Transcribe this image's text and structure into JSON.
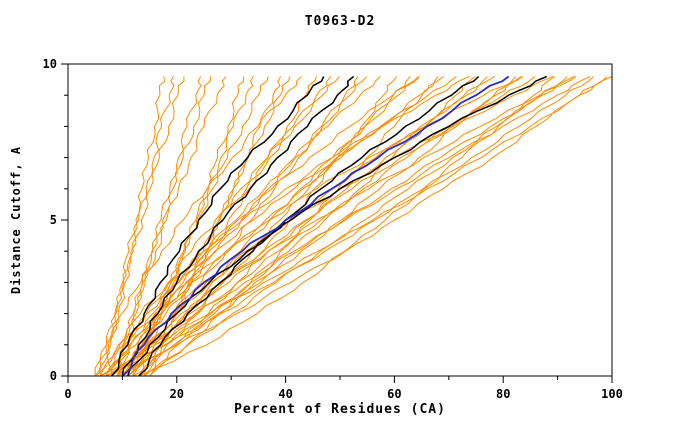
{
  "page": {
    "background": "#ffffff"
  },
  "chart_data": {
    "type": "line",
    "title": "T0963-D2",
    "xlabel": "Percent of Residues (CA)",
    "ylabel": "Distance Cutoff, A",
    "xlim": [
      0,
      100
    ],
    "ylim": [
      0,
      10
    ],
    "x_ticks": [
      0,
      20,
      40,
      60,
      80,
      100
    ],
    "x_minor_step": 10,
    "y_ticks": [
      0,
      5,
      10
    ],
    "y_minor_step": 1,
    "grid": false,
    "legend": "none",
    "frame": true,
    "jitter": 0.55,
    "colors": {
      "orange": "#ff8c00",
      "black": "#000000",
      "blue": "#2929cc"
    },
    "y_levels": [
      0,
      1,
      2,
      3,
      4,
      5,
      6,
      7,
      8,
      9,
      9.6
    ],
    "orange_series": [
      [
        5,
        7.1,
        8.6,
        10,
        11.2,
        12.5,
        13.6,
        14.8,
        15.9,
        16.9,
        17.6
      ],
      [
        6,
        7.4,
        8.8,
        10.2,
        11.6,
        13,
        14.4,
        15.8,
        17.2,
        18.6,
        19.4
      ],
      [
        7,
        7.9,
        9.2,
        10.5,
        12,
        13.5,
        15.1,
        16.8,
        18.5,
        20.2,
        21.3
      ],
      [
        8,
        10.1,
        12,
        13.7,
        15.4,
        17.1,
        18.7,
        20.3,
        21.9,
        23.5,
        24.4
      ],
      [
        9,
        10.4,
        12.1,
        13.8,
        15.6,
        17.4,
        19.3,
        21.2,
        23.1,
        25,
        26.2
      ],
      [
        10,
        11,
        12.5,
        14.2,
        16.1,
        18.1,
        20.3,
        22.6,
        25,
        27.4,
        29
      ],
      [
        11,
        14.5,
        17.1,
        19.4,
        21.6,
        23.6,
        25.6,
        27.5,
        29.4,
        31.2,
        32.3
      ],
      [
        12,
        14.3,
        16.6,
        18.9,
        21.2,
        23.5,
        25.8,
        28.1,
        30.4,
        32.7,
        34.1
      ],
      [
        13,
        14.6,
        16.6,
        18.9,
        21.3,
        23.9,
        26.6,
        29.3,
        32.1,
        35,
        36.8
      ],
      [
        14,
        17.3,
        20.1,
        22.8,
        25.4,
        27.9,
        30.4,
        32.9,
        35.3,
        37.7,
        39.1
      ],
      [
        15,
        17.1,
        19.6,
        22.2,
        24.9,
        27.6,
        30.4,
        33.2,
        36.1,
        39,
        40.8
      ],
      [
        5,
        7,
        9.9,
        13.4,
        17.2,
        21.2,
        25.6,
        30.2,
        34.9,
        39.9,
        42.9
      ],
      [
        6,
        12.5,
        17.3,
        21.7,
        25.7,
        29.5,
        33.3,
        36.8,
        40.3,
        43.7,
        45.7
      ],
      [
        7,
        11.3,
        15.6,
        19.9,
        24.2,
        28.5,
        32.8,
        37.1,
        41.4,
        45.7,
        48.3
      ],
      [
        8,
        10.8,
        14.4,
        18.4,
        22.7,
        27.1,
        31.8,
        36.7,
        41.7,
        46.8,
        49.9
      ],
      [
        9,
        14.8,
        19.8,
        24.5,
        29.1,
        33.7,
        38,
        42.4,
        46.6,
        50.9,
        53.3
      ],
      [
        10,
        13.7,
        18,
        22.5,
        27.2,
        31.9,
        36.8,
        41.7,
        46.8,
        51.8,
        54.9
      ],
      [
        11,
        13.5,
        17,
        21.2,
        25.9,
        30.9,
        36.2,
        41.8,
        47.7,
        53.7,
        57.4
      ],
      [
        12,
        19.9,
        25.8,
        31.1,
        36,
        40.7,
        45.3,
        49.6,
        53.9,
        58,
        60.4
      ],
      [
        13,
        18.2,
        23.4,
        28.6,
        33.8,
        39,
        44.2,
        49.4,
        54.6,
        59.8,
        62.9
      ],
      [
        14,
        17.3,
        21.7,
        26.5,
        31.7,
        37.1,
        42.7,
        48.6,
        54.6,
        60.7,
        64.5
      ],
      [
        15,
        21.9,
        27.9,
        33.6,
        39.1,
        44.5,
        49.7,
        54.9,
        60,
        65.1,
        68
      ],
      [
        5,
        10.3,
        16.4,
        22.8,
        29.5,
        36.3,
        43.2,
        50.2,
        57.4,
        64.6,
        69.1
      ],
      [
        6,
        9.5,
        14.5,
        20.4,
        27,
        34,
        41.5,
        49.4,
        57.6,
        66.2,
        71.4
      ],
      [
        7,
        18.1,
        26.3,
        33.7,
        40.6,
        47.2,
        53.6,
        59.6,
        65.6,
        71.3,
        74.8
      ],
      [
        8,
        15.2,
        22.4,
        29.6,
        36.8,
        44,
        51.2,
        58.4,
        65.6,
        72.8,
        77.1
      ],
      [
        9,
        13.6,
        19.6,
        26.2,
        33.3,
        40.8,
        48.6,
        56.6,
        64.8,
        73.3,
        78.5
      ],
      [
        10,
        19.5,
        27.6,
        35.4,
        42.9,
        50.2,
        57.3,
        64.5,
        71.4,
        78.3,
        82.3
      ],
      [
        11,
        17,
        23.9,
        31.2,
        38.7,
        46.5,
        54.3,
        62.3,
        70.4,
        78.6,
        83.7
      ],
      [
        12,
        15.9,
        21.6,
        28.3,
        35.7,
        43.7,
        52.2,
        61.1,
        70.3,
        80,
        85.9
      ],
      [
        13,
        25.5,
        34.8,
        43.2,
        50.9,
        58.3,
        65.5,
        72.4,
        79.1,
        85.6,
        89.5
      ],
      [
        14,
        22.1,
        30.2,
        38.3,
        46.4,
        54.5,
        62.6,
        70.7,
        78.8,
        86.9,
        91.8
      ],
      [
        15,
        20.2,
        26.9,
        34.4,
        42.3,
        50.7,
        59.4,
        68.5,
        77.7,
        87.2,
        93.1
      ],
      [
        6,
        17.8,
        28.1,
        37.8,
        47.2,
        56.4,
        65.3,
        74.2,
        82.9,
        91.5,
        96.6
      ],
      [
        8,
        15.3,
        23.6,
        32.5,
        41.6,
        51,
        60.4,
        70.1,
        79.9,
        89.9,
        96
      ],
      [
        10,
        14.4,
        20.8,
        28.4,
        36.8,
        45.7,
        55.3,
        65.4,
        75.8,
        86.7,
        93.4
      ],
      [
        12,
        14.6,
        19.3,
        25.4,
        32.7,
        41,
        50.1,
        60.1,
        70.7,
        82,
        89.2
      ],
      [
        9,
        11.5,
        16,
        22,
        29,
        37,
        45.7,
        55.3,
        65.6,
        76.5,
        83.3
      ],
      [
        7,
        9.3,
        13.3,
        18.6,
        25,
        32.1,
        40,
        48.6,
        57.8,
        67.6,
        73.8
      ],
      [
        11,
        12.8,
        16.1,
        20.3,
        25.4,
        31.2,
        37.5,
        44.4,
        51.8,
        59.7,
        64.6
      ],
      [
        7,
        16,
        26,
        36,
        46,
        56,
        66,
        76,
        85,
        94,
        100
      ],
      [
        9,
        20,
        31,
        41,
        51,
        60,
        69,
        78,
        86,
        94,
        99
      ]
    ],
    "black_series": [
      [
        8,
        11,
        14,
        17,
        20.5,
        24,
        28,
        33,
        38.5,
        44,
        47
      ],
      [
        10,
        13,
        16.5,
        20,
        24,
        28.5,
        33.5,
        38.5,
        44,
        49.5,
        52.5
      ],
      [
        13,
        17,
        22,
        28,
        34,
        40,
        46.5,
        54,
        62,
        70.5,
        75.5
      ],
      [
        11,
        15,
        20,
        26,
        33,
        41,
        50,
        60,
        70,
        81,
        88
      ]
    ],
    "blue_series": [
      [
        10,
        14,
        19,
        25,
        32,
        40,
        48.5,
        57,
        66,
        75,
        81
      ]
    ]
  }
}
